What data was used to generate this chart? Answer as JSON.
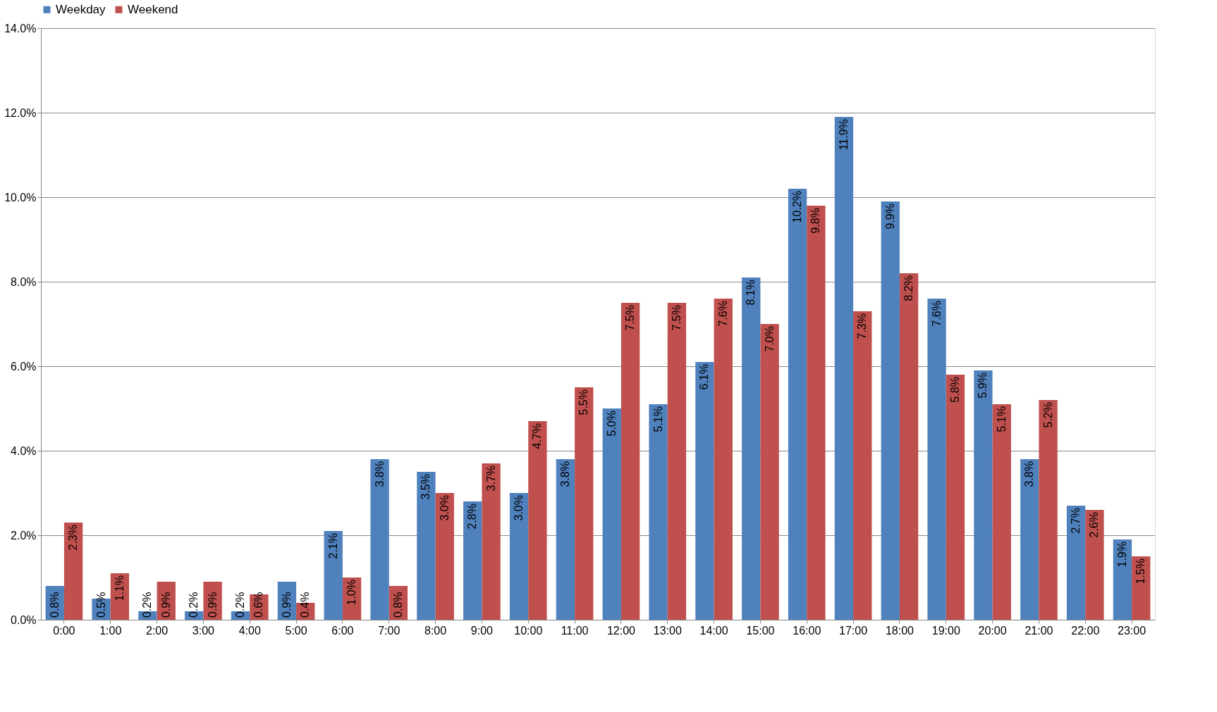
{
  "chart_data": {
    "type": "bar",
    "categories": [
      "0:00",
      "1:00",
      "2:00",
      "3:00",
      "4:00",
      "5:00",
      "6:00",
      "7:00",
      "8:00",
      "9:00",
      "10:00",
      "11:00",
      "12:00",
      "13:00",
      "14:00",
      "15:00",
      "16:00",
      "17:00",
      "18:00",
      "19:00",
      "20:00",
      "21:00",
      "22:00",
      "23:00"
    ],
    "series": [
      {
        "name": "Weekday",
        "color": "#4f81bd",
        "values": [
          0.8,
          0.5,
          0.2,
          0.2,
          0.2,
          0.9,
          2.1,
          3.8,
          3.5,
          2.8,
          3.0,
          3.8,
          5.0,
          5.1,
          6.1,
          8.1,
          10.2,
          11.9,
          9.9,
          7.6,
          5.9,
          3.8,
          2.7,
          1.9
        ],
        "value_labels": [
          "0.8%",
          "0.5%",
          "0.2%",
          "0.2%",
          "0.2%",
          "0.9%",
          "2.1%",
          "3.8%",
          "3.5%",
          "2.8%",
          "3.0%",
          "3.8%",
          "5.0%",
          "5.1%",
          "6.1%",
          "8.1%",
          "10.2%",
          "11.9%",
          "9.9%",
          "7.6%",
          "5.9%",
          "3.8%",
          "2.7%",
          "1.9%"
        ]
      },
      {
        "name": "Weekend",
        "color": "#c0504d",
        "values": [
          2.3,
          1.1,
          0.9,
          0.9,
          0.6,
          0.4,
          1.0,
          0.8,
          3.0,
          3.7,
          4.7,
          5.5,
          7.5,
          7.5,
          7.6,
          7.0,
          9.8,
          7.3,
          8.2,
          5.8,
          5.1,
          5.2,
          2.6,
          1.5
        ],
        "value_labels": [
          "2.3%",
          "1.1%",
          "0.9%",
          "0.9%",
          "0.6%",
          "0.4%",
          "1.0%",
          "0.8%",
          "3.0%",
          "3.7%",
          "4.7%",
          "5.5%",
          "7.5%",
          "7.5%",
          "7.6%",
          "7.0%",
          "9.8%",
          "7.3%",
          "8.2%",
          "5.8%",
          "5.1%",
          "5.2%",
          "2.6%",
          "1.5%"
        ]
      }
    ],
    "ylim": [
      0,
      14
    ],
    "yticks": [
      {
        "value": 0,
        "label": "0.0%"
      },
      {
        "value": 2,
        "label": "2.0%"
      },
      {
        "value": 4,
        "label": "4.0%"
      },
      {
        "value": 6,
        "label": "6.0%"
      },
      {
        "value": 8,
        "label": "8.0%"
      },
      {
        "value": 10,
        "label": "10.0%"
      },
      {
        "value": 12,
        "label": "12.0%"
      },
      {
        "value": 14,
        "label": "14.0%"
      }
    ],
    "grid": "y",
    "legend": "top"
  }
}
